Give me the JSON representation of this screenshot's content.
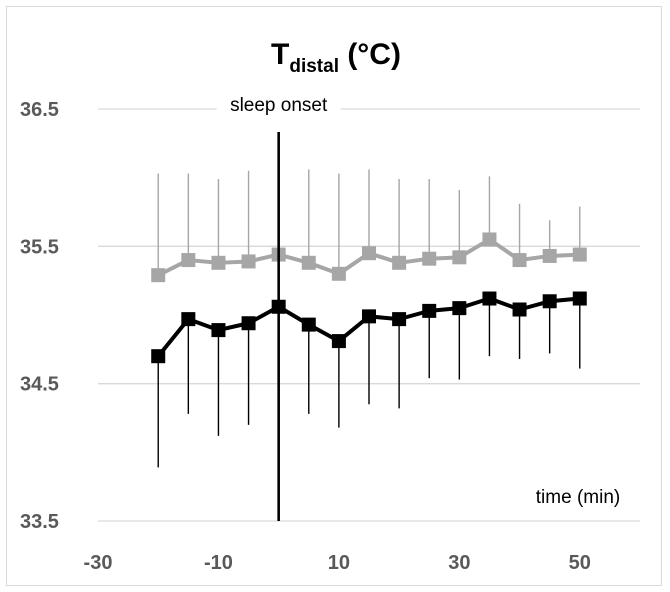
{
  "chart_data": {
    "type": "line",
    "title_main": "T",
    "title_sub": "distal",
    "title_unit": " (°C)",
    "xlabel": "time (min)",
    "ylabel": "",
    "xlim": [
      -30,
      60
    ],
    "ylim": [
      33.5,
      36.5
    ],
    "x_ticks": [
      -30,
      -10,
      10,
      30,
      50
    ],
    "x_tick_labels": [
      "-30",
      "-10",
      "10",
      "30",
      "50"
    ],
    "y_ticks": [
      33.5,
      34.5,
      35.5,
      36.5
    ],
    "y_tick_labels": [
      "33.5",
      "34.5",
      "35.5",
      "36.5"
    ],
    "grid": true,
    "annotation": {
      "text": "sleep onset",
      "x": 0
    },
    "x": [
      -20,
      -15,
      -10,
      -5,
      0,
      5,
      10,
      15,
      20,
      25,
      30,
      35,
      40,
      45,
      50
    ],
    "series": [
      {
        "color": "#a6a6a6",
        "error_direction": "up",
        "values": [
          35.29,
          35.4,
          35.38,
          35.39,
          35.44,
          35.38,
          35.3,
          35.45,
          35.38,
          35.41,
          35.42,
          35.55,
          35.4,
          35.43,
          35.44
        ],
        "error_bound": [
          36.03,
          36.03,
          35.99,
          36.05,
          36.09,
          36.06,
          36.03,
          36.06,
          35.99,
          35.99,
          35.91,
          36.01,
          35.81,
          35.69,
          35.79
        ]
      },
      {
        "color": "#000000",
        "error_direction": "down",
        "values": [
          34.7,
          34.97,
          34.89,
          34.94,
          35.06,
          34.93,
          34.81,
          34.99,
          34.97,
          35.03,
          35.05,
          35.12,
          35.04,
          35.1,
          35.12
        ],
        "error_bound": [
          33.89,
          34.28,
          34.12,
          34.2,
          33.52,
          34.28,
          34.18,
          34.35,
          34.32,
          34.54,
          34.53,
          34.7,
          34.68,
          34.72,
          34.61
        ]
      }
    ]
  }
}
